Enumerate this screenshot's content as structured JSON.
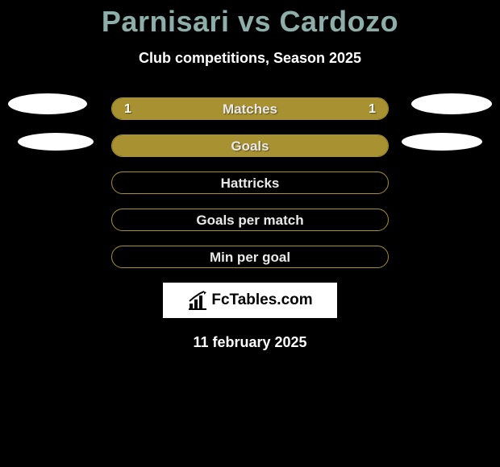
{
  "title": "Parnisari vs Cardozo",
  "subtitle": "Club competitions, Season 2025",
  "date": "11 february 2025",
  "colors": {
    "title": "#8eaeaa",
    "bar_border": "#a79131",
    "bar_fill": "#a79131",
    "background": "#000000",
    "logo_bg": "#ffffff",
    "logo_text": "#000000"
  },
  "rows": [
    {
      "label": "Matches",
      "left_val": "1",
      "right_val": "1",
      "left_pct": 50,
      "right_pct": 50,
      "avatars": "first"
    },
    {
      "label": "Goals",
      "left_val": "",
      "right_val": "",
      "left_pct": 100,
      "right_pct": 0,
      "avatars": "second"
    },
    {
      "label": "Hattricks",
      "left_val": "",
      "right_val": "",
      "left_pct": 0,
      "right_pct": 0,
      "avatars": "none"
    },
    {
      "label": "Goals per match",
      "left_val": "",
      "right_val": "",
      "left_pct": 0,
      "right_pct": 0,
      "avatars": "none"
    },
    {
      "label": "Min per goal",
      "left_val": "",
      "right_val": "",
      "left_pct": 0,
      "right_pct": 0,
      "avatars": "none"
    }
  ],
  "logo_text": "FcTables.com"
}
